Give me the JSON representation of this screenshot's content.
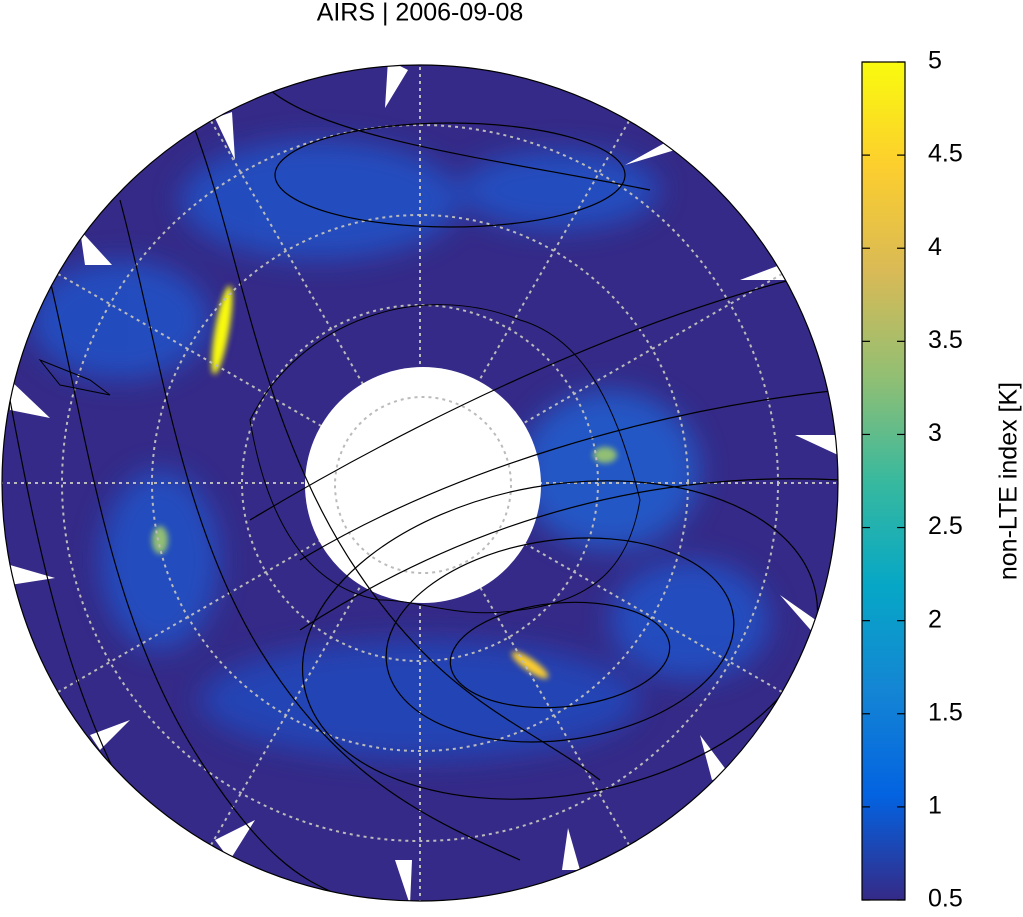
{
  "title": "AIRS | 2006-09-08",
  "colorbar": {
    "label": "non-LTE index [K]",
    "lim": [
      0.5,
      5
    ],
    "ticks": [
      0.5,
      1,
      1.5,
      2,
      2.5,
      3,
      3.5,
      4,
      4.5,
      5
    ],
    "colormap": [
      "#352a87",
      "#0363e1",
      "#1485d4",
      "#06a7c6",
      "#38b99e",
      "#92bf73",
      "#d9ba56",
      "#fcce2e",
      "#f9fb0e"
    ]
  }
}
